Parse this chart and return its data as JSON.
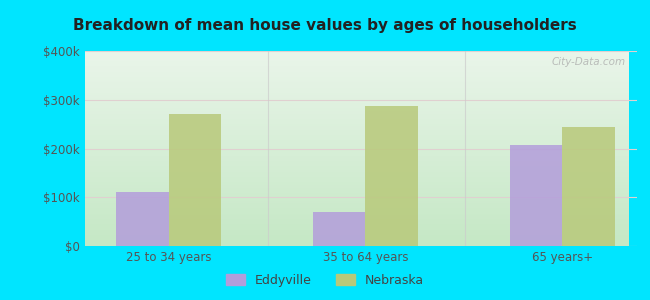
{
  "title": "Breakdown of mean house values by ages of householders",
  "categories": [
    "25 to 34 years",
    "35 to 64 years",
    "65 years+"
  ],
  "eddyville_values": [
    110000,
    70000,
    207000
  ],
  "nebraska_values": [
    270000,
    287000,
    245000
  ],
  "eddyville_color": "#b39ddb",
  "nebraska_color": "#b8c97a",
  "background_color": "#00e5ff",
  "ylim": [
    0,
    400000
  ],
  "yticks": [
    0,
    100000,
    200000,
    300000,
    400000
  ],
  "ytick_labels": [
    "$0",
    "$100k",
    "$200k",
    "$300k",
    "$400k"
  ],
  "watermark": "City-Data.com",
  "legend_labels": [
    "Eddyville",
    "Nebraska"
  ],
  "title_fontsize": 11,
  "tick_fontsize": 8.5,
  "legend_fontsize": 9,
  "bar_width": 0.28
}
